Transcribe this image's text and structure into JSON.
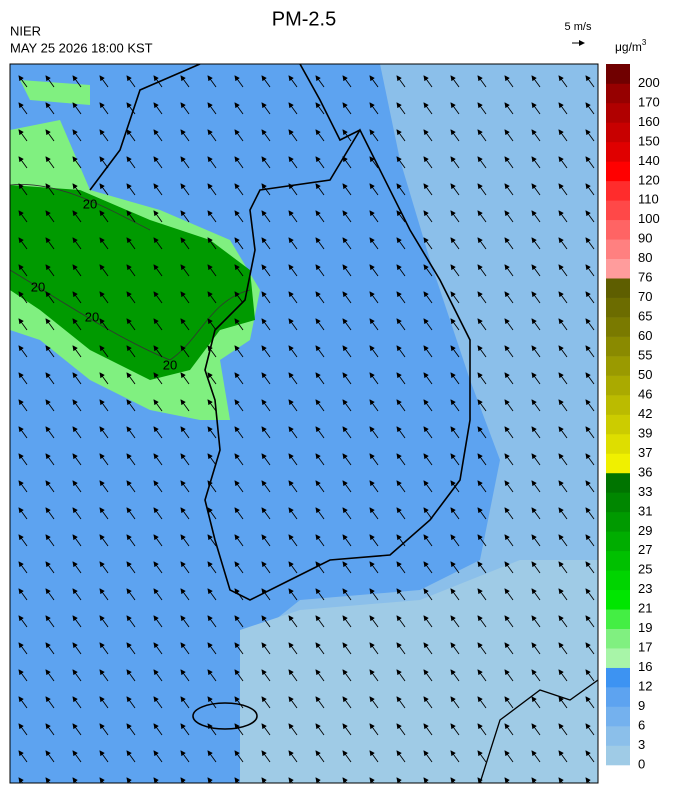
{
  "header": {
    "title": "PM-2.5",
    "agency": "NIER",
    "timestamp": "MAY 25 2026 18:00 KST",
    "wind_scale": "5 m/s",
    "unit": {
      "base": "μg/m",
      "sup": "3"
    }
  },
  "colorbar": {
    "levels": [
      0,
      3,
      6,
      9,
      12,
      16,
      17,
      19,
      21,
      23,
      25,
      27,
      29,
      31,
      33,
      36,
      37,
      39,
      42,
      46,
      50,
      55,
      60,
      65,
      70,
      76,
      80,
      90,
      100,
      110,
      120,
      140,
      150,
      160,
      170,
      200
    ],
    "colors": [
      "#9fcbe6",
      "#8bbfea",
      "#74b1ee",
      "#5da3f0",
      "#3d93f2",
      "#a8f5a8",
      "#80f080",
      "#44ee44",
      "#00e600",
      "#00d400",
      "#00c000",
      "#00ad00",
      "#009a00",
      "#008700",
      "#007400",
      "#f0f000",
      "#dede00",
      "#cccc00",
      "#bbbb00",
      "#aaaa00",
      "#9a9a00",
      "#8a8a00",
      "#7a7a00",
      "#6c6c00",
      "#5e5e00",
      "#ff9c9c",
      "#ff8080",
      "#ff6464",
      "#ff4848",
      "#ff2c2c",
      "#ff0000",
      "#e00000",
      "#c80000",
      "#b00000",
      "#960000",
      "#700000"
    ]
  },
  "contour_labels": [
    20,
    20,
    20,
    20
  ]
}
